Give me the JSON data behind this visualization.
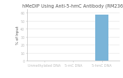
{
  "title": "hMeDIP Using Anti-5-hmC Antibody (RM236)",
  "categories": [
    "Unmethylated DNA",
    "5-mC DNA",
    "5-hmC DNA"
  ],
  "values": [
    0.3,
    0.3,
    58.0
  ],
  "bar_color": "#7ab4d8",
  "ylabel": "% of Input",
  "ylim": [
    0,
    65
  ],
  "yticks": [
    0,
    10,
    20,
    30,
    40,
    50,
    60
  ],
  "title_fontsize": 4.8,
  "axis_fontsize": 3.8,
  "tick_fontsize": 3.5,
  "background_color": "#ffffff",
  "bar_width": 0.45,
  "spine_color": "#bbbbbb",
  "grid_color": "#e0e0e0",
  "text_color": "#555555"
}
